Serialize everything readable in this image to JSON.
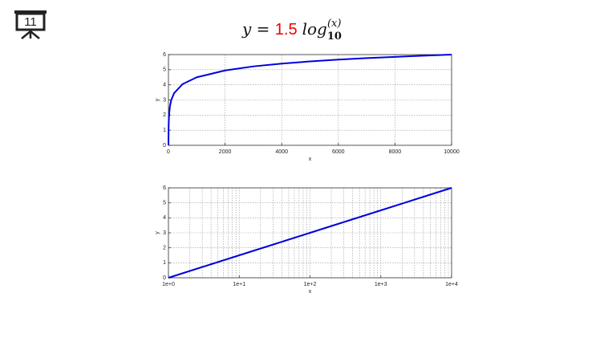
{
  "slide_number": "11",
  "formula": {
    "lhs": "y = ",
    "coefficient": "1.5",
    "function": "log",
    "base": "10",
    "exponent": "(x)"
  },
  "chart_data": [
    {
      "type": "line",
      "xlabel": "x",
      "ylabel": "y",
      "xscale": "linear",
      "grid": true,
      "color": "#0000dd",
      "x": [
        1,
        2,
        5,
        10,
        20,
        50,
        100,
        200,
        500,
        1000,
        2000,
        3000,
        4000,
        5000,
        6000,
        7000,
        8000,
        9000,
        10000
      ],
      "values": [
        0,
        0.45,
        1.05,
        1.5,
        1.95,
        2.55,
        3,
        3.45,
        4.05,
        4.5,
        4.95,
        5.22,
        5.4,
        5.55,
        5.67,
        5.77,
        5.85,
        5.93,
        6
      ],
      "xlim": [
        0,
        10000
      ],
      "xticks": [
        0,
        2000,
        4000,
        6000,
        8000,
        10000
      ],
      "ylim": [
        0,
        6
      ],
      "yticks": [
        0,
        1,
        2,
        3,
        4,
        5,
        6
      ]
    },
    {
      "type": "line",
      "xlabel": "x",
      "ylabel": "y",
      "xscale": "log",
      "grid": true,
      "color": "#0000dd",
      "x": [
        1,
        10,
        100,
        1000,
        10000
      ],
      "values": [
        0,
        1.5,
        3,
        4.5,
        6
      ],
      "xlim": [
        1,
        10000
      ],
      "xticks": [
        {
          "value": 1,
          "label": "1e+0"
        },
        {
          "value": 10,
          "label": "1e+1"
        },
        {
          "value": 100,
          "label": "1e+2"
        },
        {
          "value": 1000,
          "label": "1e+3"
        },
        {
          "value": 10000,
          "label": "1e+4"
        }
      ],
      "ylim": [
        0,
        6
      ],
      "yticks": [
        0,
        1,
        2,
        3,
        4,
        5,
        6
      ]
    }
  ]
}
